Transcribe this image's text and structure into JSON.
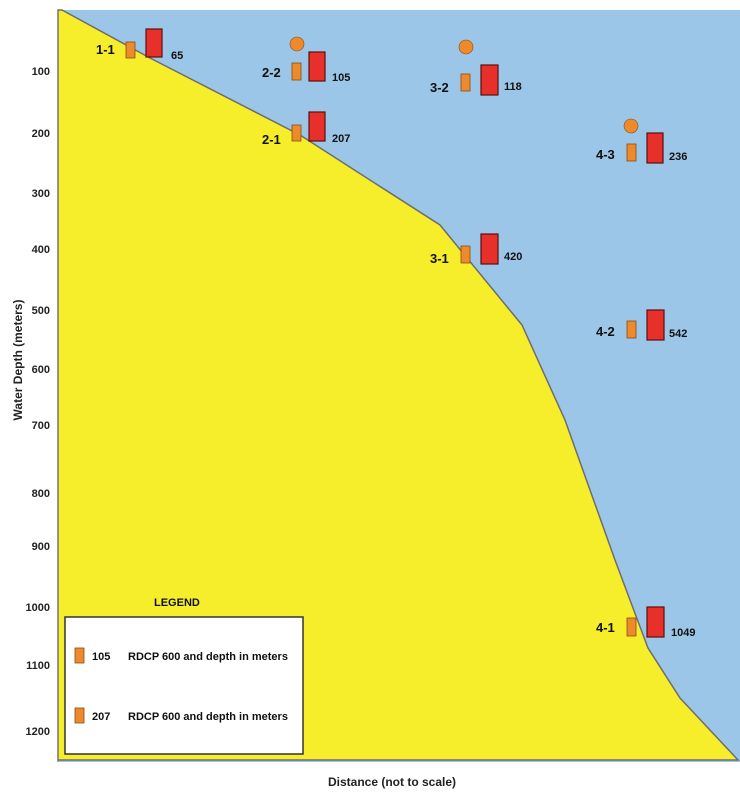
{
  "colors": {
    "water": "#9cc6e8",
    "seabed": "#f6ee2a",
    "seabed_edge": "#6d6d6d",
    "rdcp600": "#ec8a2c",
    "rdcp600_edge": "#8a4b12",
    "large_adcp": "#e8302a",
    "large_adcp_edge": "#5a1010",
    "float": "#ec8a2c"
  },
  "axes": {
    "y_label": "Water Depth (meters)",
    "x_label": "Distance (not to scale)",
    "y_ticks": [
      "100",
      "200",
      "300",
      "400",
      "500",
      "600",
      "700",
      "800",
      "900",
      "1000",
      "1100",
      "1200"
    ]
  },
  "moorings": [
    {
      "id": "1-1",
      "depth_label": "65",
      "depth": 65,
      "has_float": false
    },
    {
      "id": "2-2",
      "depth_label": "105",
      "depth": 105,
      "has_float": true
    },
    {
      "id": "2-1",
      "depth_label": "207",
      "depth": 207,
      "has_float": false
    },
    {
      "id": "3-2",
      "depth_label": "118",
      "depth": 118,
      "has_float": true
    },
    {
      "id": "3-1",
      "depth_label": "420",
      "depth": 420,
      "has_float": false
    },
    {
      "id": "4-3",
      "depth_label": "236",
      "depth": 236,
      "has_float": true
    },
    {
      "id": "4-2",
      "depth_label": "542",
      "depth": 542,
      "has_float": false
    },
    {
      "id": "4-1",
      "depth_label": "1049",
      "depth": 1049,
      "has_float": false
    }
  ],
  "legend": {
    "title": "LEGEND",
    "items": [
      {
        "number": "105",
        "text": "RDCP 600 and depth in meters"
      },
      {
        "number": "207",
        "text": "RDCP 600 and depth in meters"
      }
    ]
  }
}
